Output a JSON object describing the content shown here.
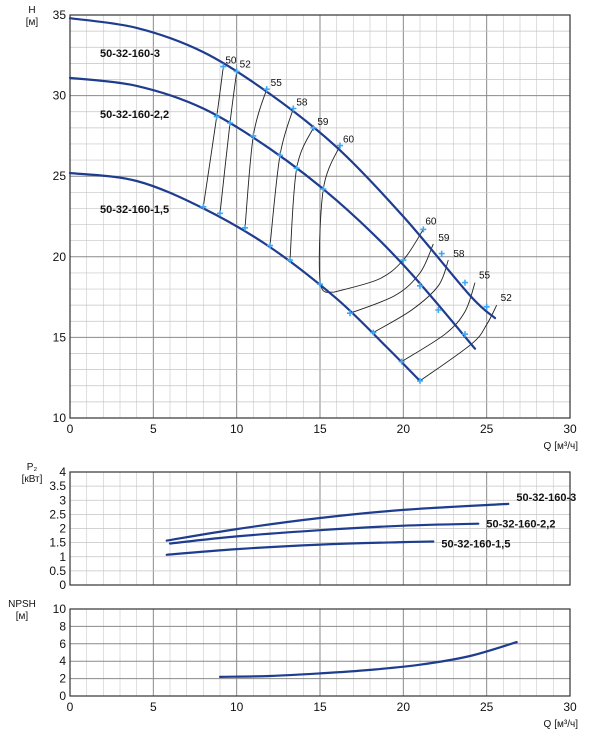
{
  "colors": {
    "curve": "#1f3d8f",
    "marker": "#3fa9f5",
    "grid": "#b8b8b8",
    "frame": "#333333"
  },
  "chart_data": [
    {
      "type": "line",
      "id": "head",
      "ylabel": "H",
      "yunit": "[м]",
      "xlabel": "Q",
      "xunit": "[м³/ч]",
      "xlim": [
        0,
        30
      ],
      "ylim": [
        10,
        35
      ],
      "xticks": [
        0,
        5,
        10,
        15,
        20,
        25,
        30
      ],
      "yticks": [
        10,
        15,
        20,
        25,
        30,
        35
      ],
      "grid": true,
      "series": [
        {
          "name": "50-32-160-3",
          "x": [
            0,
            4,
            8,
            12,
            16,
            20,
            24,
            25.5
          ],
          "y": [
            34.8,
            34.2,
            32.7,
            30.1,
            26.8,
            22.5,
            17.6,
            16.2
          ]
        },
        {
          "name": "50-32-160-2,2",
          "x": [
            0,
            4,
            8,
            12,
            16,
            20,
            24.3
          ],
          "y": [
            31.1,
            30.6,
            29.2,
            26.7,
            23.5,
            19.5,
            14.3
          ]
        },
        {
          "name": "50-32-160-1,5",
          "x": [
            0,
            4,
            8,
            12,
            16,
            19,
            21
          ],
          "y": [
            25.2,
            24.7,
            23.0,
            20.6,
            17.4,
            14.4,
            12.3
          ]
        }
      ],
      "efficiency_lines": [
        {
          "label": "50",
          "points": [
            [
              9.2,
              31.8
            ],
            [
              8.8,
              28.7
            ],
            [
              8.0,
              23.1
            ]
          ]
        },
        {
          "label": "52",
          "points": [
            [
              10.0,
              31.5
            ],
            [
              9.6,
              28.3
            ],
            [
              9.0,
              22.7
            ]
          ]
        },
        {
          "label": "55",
          "points": [
            [
              11.8,
              30.4
            ],
            [
              11.0,
              27.5
            ],
            [
              10.5,
              21.8
            ]
          ]
        },
        {
          "label": "58",
          "points": [
            [
              13.4,
              29.2
            ],
            [
              12.6,
              26.3
            ],
            [
              12.0,
              20.7
            ]
          ]
        },
        {
          "label": "59",
          "points": [
            [
              14.6,
              28.0
            ],
            [
              13.6,
              25.5
            ],
            [
              13.2,
              19.8
            ]
          ]
        },
        {
          "label": "60",
          "points": [
            [
              16.2,
              26.9
            ],
            [
              15.2,
              24.2
            ],
            [
              15.0,
              18.5
            ],
            [
              15.8,
              17.8
            ]
          ]
        },
        {
          "label": "60",
          "points": [
            [
              15.8,
              17.8
            ],
            [
              18.5,
              18.6
            ],
            [
              20.0,
              19.8
            ],
            [
              21.2,
              21.7
            ]
          ]
        },
        {
          "label": "59",
          "points": [
            [
              16.8,
              16.5
            ],
            [
              19.5,
              17.6
            ],
            [
              21.0,
              19.0
            ],
            [
              21.8,
              20.8
            ]
          ]
        },
        {
          "label": "58",
          "points": [
            [
              18.2,
              15.3
            ],
            [
              20.5,
              16.7
            ],
            [
              22.1,
              18.2
            ],
            [
              22.7,
              19.8
            ]
          ]
        },
        {
          "label": "55",
          "points": [
            [
              19.9,
              13.5
            ],
            [
              22.5,
              15.2
            ],
            [
              23.7,
              16.6
            ],
            [
              24.3,
              18.4
            ]
          ]
        },
        {
          "label": "52",
          "points": [
            [
              21.0,
              12.3
            ],
            [
              24.1,
              14.6
            ],
            [
              25.0,
              15.8
            ],
            [
              25.6,
              17.0
            ]
          ]
        }
      ],
      "markers": [
        [
          9.2,
          31.8
        ],
        [
          10.0,
          31.5
        ],
        [
          11.8,
          30.4
        ],
        [
          13.4,
          29.2
        ],
        [
          14.6,
          28.0
        ],
        [
          16.2,
          26.9
        ],
        [
          21.2,
          21.7
        ],
        [
          22.3,
          20.2
        ],
        [
          23.7,
          18.4
        ],
        [
          25.0,
          16.9
        ],
        [
          8.8,
          28.7
        ],
        [
          9.6,
          28.3
        ],
        [
          11.0,
          27.5
        ],
        [
          12.6,
          26.3
        ],
        [
          13.6,
          25.5
        ],
        [
          15.2,
          24.2
        ],
        [
          20.0,
          19.8
        ],
        [
          21.0,
          18.2
        ],
        [
          22.1,
          16.7
        ],
        [
          23.7,
          15.2
        ],
        [
          8.0,
          23.1
        ],
        [
          9.0,
          22.7
        ],
        [
          10.5,
          21.8
        ],
        [
          12.0,
          20.7
        ],
        [
          13.2,
          19.8
        ],
        [
          15.0,
          18.3
        ],
        [
          16.8,
          16.5
        ],
        [
          18.2,
          15.3
        ],
        [
          19.9,
          13.5
        ],
        [
          21.0,
          12.3
        ]
      ],
      "efficiency_label_positions_note": "",
      "curve_labels": [
        {
          "text": "50-32-160-3"
        },
        {
          "text": "50-32-160-2,2"
        },
        {
          "text": "50-32-160-1,5"
        }
      ]
    },
    {
      "type": "line",
      "id": "power",
      "ylabel": "P₂",
      "yunit": "[кВт]",
      "xlim": [
        0,
        30
      ],
      "ylim": [
        0,
        4
      ],
      "yticks": [
        0,
        0.5,
        1,
        1.5,
        2,
        2.5,
        3,
        3.5,
        4
      ],
      "yticklabels": [
        "0",
        "0.5",
        "1",
        "1.5",
        "2",
        "2.5",
        "3",
        "3.5",
        "4"
      ],
      "grid": true,
      "series": [
        {
          "name": "50-32-160-3",
          "x": [
            5.8,
            10,
            15,
            20,
            26.3
          ],
          "y": [
            1.57,
            1.98,
            2.37,
            2.66,
            2.87
          ]
        },
        {
          "name": "50-32-160-2,2",
          "x": [
            6.0,
            10,
            15,
            20,
            24.5
          ],
          "y": [
            1.47,
            1.72,
            1.94,
            2.1,
            2.17
          ]
        },
        {
          "name": "50-32-160-1,5",
          "x": [
            5.8,
            10,
            15,
            20,
            21.8
          ],
          "y": [
            1.07,
            1.27,
            1.43,
            1.52,
            1.54
          ]
        }
      ]
    },
    {
      "type": "line",
      "id": "npsh",
      "ylabel": "NPSH",
      "yunit": "[м]",
      "xlabel": "Q",
      "xunit": "[м³/ч]",
      "xlim": [
        0,
        30
      ],
      "ylim": [
        0,
        10
      ],
      "xticks": [
        0,
        5,
        10,
        15,
        20,
        25,
        30
      ],
      "yticks": [
        0,
        2,
        4,
        6,
        8,
        10
      ],
      "grid": true,
      "series": [
        {
          "name": "",
          "x": [
            9,
            12,
            15,
            18,
            21,
            24,
            26.8
          ],
          "y": [
            2.2,
            2.3,
            2.6,
            3.0,
            3.6,
            4.6,
            6.2
          ]
        }
      ]
    }
  ]
}
